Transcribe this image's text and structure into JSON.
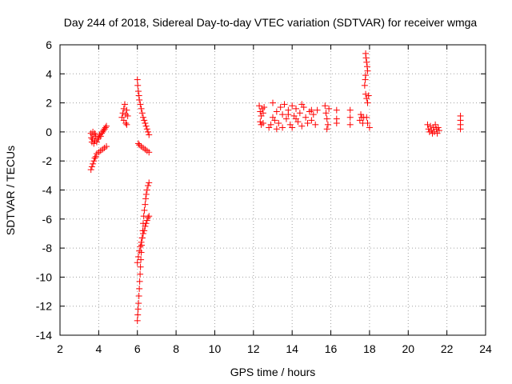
{
  "chart_data": {
    "type": "scatter",
    "title": "Day 244 of 2018, Sidereal Day-to-day VTEC variation (SDTVAR) for receiver wmga",
    "xlabel": "GPS time / hours",
    "ylabel": "SDTVAR / TECUs",
    "xlim": [
      2,
      24
    ],
    "ylim": [
      -14,
      6
    ],
    "xticks": [
      2,
      4,
      6,
      8,
      10,
      12,
      14,
      16,
      18,
      20,
      22,
      24
    ],
    "yticks": [
      -14,
      -12,
      -10,
      -8,
      -6,
      -4,
      -2,
      0,
      2,
      4,
      6
    ],
    "grid": true,
    "marker": "+",
    "color": "#ff0000",
    "series": [
      {
        "name": "SDTVAR",
        "points": [
          [
            3.6,
            -2.6
          ],
          [
            3.65,
            -2.4
          ],
          [
            3.7,
            -2.2
          ],
          [
            3.75,
            -2.0
          ],
          [
            3.8,
            -1.8
          ],
          [
            3.85,
            -1.7
          ],
          [
            3.9,
            -1.5
          ],
          [
            4.0,
            -1.4
          ],
          [
            4.1,
            -1.3
          ],
          [
            4.2,
            -1.2
          ],
          [
            4.3,
            -1.1
          ],
          [
            4.4,
            -1.0
          ],
          [
            3.6,
            -0.1
          ],
          [
            3.62,
            -0.4
          ],
          [
            3.65,
            -0.7
          ],
          [
            3.68,
            -0.5
          ],
          [
            3.7,
            -0.2
          ],
          [
            3.75,
            -0.8
          ],
          [
            3.8,
            -0.6
          ],
          [
            3.85,
            -0.3
          ],
          [
            3.9,
            -0.7
          ],
          [
            3.95,
            -0.5
          ],
          [
            4.0,
            -0.4
          ],
          [
            4.05,
            -0.2
          ],
          [
            4.1,
            -0.3
          ],
          [
            4.15,
            -0.1
          ],
          [
            4.2,
            0.0
          ],
          [
            4.25,
            0.1
          ],
          [
            4.3,
            0.2
          ],
          [
            4.35,
            0.3
          ],
          [
            4.4,
            0.4
          ],
          [
            3.7,
            0.0
          ],
          [
            3.8,
            -0.1
          ],
          [
            5.2,
            1.0
          ],
          [
            5.25,
            1.3
          ],
          [
            5.3,
            1.6
          ],
          [
            5.3,
            0.8
          ],
          [
            5.35,
            1.9
          ],
          [
            5.4,
            1.2
          ],
          [
            5.4,
            0.6
          ],
          [
            5.45,
            1.5
          ],
          [
            5.45,
            0.5
          ],
          [
            5.5,
            1.1
          ],
          [
            6.0,
            3.6
          ],
          [
            6.02,
            3.2
          ],
          [
            6.05,
            2.8
          ],
          [
            6.08,
            2.5
          ],
          [
            6.1,
            2.2
          ],
          [
            6.15,
            1.9
          ],
          [
            6.2,
            1.6
          ],
          [
            6.25,
            1.3
          ],
          [
            6.3,
            1.0
          ],
          [
            6.35,
            0.8
          ],
          [
            6.4,
            0.6
          ],
          [
            6.45,
            0.4
          ],
          [
            6.5,
            0.2
          ],
          [
            6.55,
            0.0
          ],
          [
            6.6,
            -0.2
          ],
          [
            6.05,
            -0.8
          ],
          [
            6.1,
            -0.9
          ],
          [
            6.2,
            -1.0
          ],
          [
            6.3,
            -1.1
          ],
          [
            6.4,
            -1.2
          ],
          [
            6.5,
            -1.3
          ],
          [
            6.6,
            -1.4
          ],
          [
            6.0,
            -13.0
          ],
          [
            6.02,
            -12.6
          ],
          [
            6.04,
            -12.2
          ],
          [
            6.06,
            -11.8
          ],
          [
            6.08,
            -11.3
          ],
          [
            6.1,
            -10.8
          ],
          [
            6.12,
            -10.3
          ],
          [
            6.14,
            -9.8
          ],
          [
            6.16,
            -9.3
          ],
          [
            6.18,
            -8.8
          ],
          [
            6.2,
            -8.3
          ],
          [
            6.22,
            -7.8
          ],
          [
            6.25,
            -7.3
          ],
          [
            6.28,
            -6.8
          ],
          [
            6.3,
            -6.3
          ],
          [
            6.33,
            -5.8
          ],
          [
            6.36,
            -5.4
          ],
          [
            6.4,
            -5.0
          ],
          [
            6.43,
            -4.6
          ],
          [
            6.46,
            -4.3
          ],
          [
            6.5,
            -4.0
          ],
          [
            6.55,
            -3.7
          ],
          [
            6.6,
            -3.5
          ],
          [
            6.0,
            -9.0
          ],
          [
            6.05,
            -8.6
          ],
          [
            6.1,
            -8.2
          ],
          [
            6.15,
            -7.9
          ],
          [
            6.2,
            -7.6
          ],
          [
            6.25,
            -7.3
          ],
          [
            6.3,
            -7.0
          ],
          [
            6.35,
            -6.8
          ],
          [
            6.4,
            -6.5
          ],
          [
            6.45,
            -6.3
          ],
          [
            6.5,
            -6.1
          ],
          [
            6.55,
            -5.9
          ],
          [
            6.6,
            -5.8
          ],
          [
            12.3,
            1.8
          ],
          [
            12.35,
            1.4
          ],
          [
            12.4,
            1.1
          ],
          [
            12.45,
            1.6
          ],
          [
            12.5,
            1.3
          ],
          [
            12.55,
            1.7
          ],
          [
            12.35,
            0.7
          ],
          [
            12.4,
            0.5
          ],
          [
            12.5,
            0.6
          ],
          [
            12.8,
            0.3
          ],
          [
            12.9,
            0.5
          ],
          [
            13.0,
            1.0
          ],
          [
            13.0,
            2.0
          ],
          [
            13.1,
            0.8
          ],
          [
            13.2,
            1.4
          ],
          [
            13.3,
            0.6
          ],
          [
            13.4,
            1.7
          ],
          [
            13.5,
            1.2
          ],
          [
            13.5,
            0.3
          ],
          [
            13.6,
            1.9
          ],
          [
            13.7,
            0.9
          ],
          [
            13.8,
            1.5
          ],
          [
            13.9,
            0.5
          ],
          [
            14.0,
            1.8
          ],
          [
            14.1,
            1.1
          ],
          [
            14.2,
            1.6
          ],
          [
            14.3,
            0.7
          ],
          [
            14.4,
            1.3
          ],
          [
            14.5,
            0.4
          ],
          [
            14.6,
            1.7
          ],
          [
            14.7,
            1.0
          ],
          [
            14.8,
            0.6
          ],
          [
            14.9,
            1.4
          ],
          [
            15.0,
            0.8
          ],
          [
            15.1,
            1.2
          ],
          [
            15.2,
            0.5
          ],
          [
            15.3,
            1.5
          ],
          [
            13.2,
            0.2
          ],
          [
            14.0,
            0.3
          ],
          [
            14.5,
            1.9
          ],
          [
            14.2,
            0.9
          ],
          [
            13.8,
            1.2
          ],
          [
            15.0,
            1.5
          ],
          [
            15.7,
            1.8
          ],
          [
            15.75,
            1.3
          ],
          [
            15.8,
            0.9
          ],
          [
            15.85,
            0.5
          ],
          [
            15.9,
            1.6
          ],
          [
            15.8,
            0.2
          ],
          [
            16.3,
            1.5
          ],
          [
            16.3,
            0.9
          ],
          [
            16.3,
            0.6
          ],
          [
            17.0,
            1.5
          ],
          [
            17.0,
            1.0
          ],
          [
            17.0,
            0.5
          ],
          [
            17.5,
            0.8
          ],
          [
            17.55,
            1.2
          ],
          [
            17.6,
            1.0
          ],
          [
            17.65,
            0.6
          ],
          [
            17.7,
            1.0
          ],
          [
            17.8,
            5.4
          ],
          [
            17.82,
            5.1
          ],
          [
            17.85,
            4.8
          ],
          [
            17.88,
            4.5
          ],
          [
            17.9,
            4.2
          ],
          [
            17.8,
            3.9
          ],
          [
            17.78,
            3.6
          ],
          [
            17.75,
            3.2
          ],
          [
            17.8,
            2.6
          ],
          [
            17.85,
            2.3
          ],
          [
            17.9,
            2.0
          ],
          [
            17.95,
            2.5
          ],
          [
            17.85,
            1.0
          ],
          [
            17.9,
            0.6
          ],
          [
            18.0,
            0.3
          ],
          [
            21.0,
            0.5
          ],
          [
            21.05,
            0.2
          ],
          [
            21.1,
            0.0
          ],
          [
            21.15,
            0.4
          ],
          [
            21.2,
            0.1
          ],
          [
            21.25,
            -0.1
          ],
          [
            21.3,
            0.3
          ],
          [
            21.35,
            0.0
          ],
          [
            21.4,
            0.5
          ],
          [
            21.45,
            0.2
          ],
          [
            21.5,
            -0.1
          ],
          [
            21.55,
            0.3
          ],
          [
            21.6,
            0.1
          ],
          [
            22.7,
            1.1
          ],
          [
            22.7,
            0.8
          ],
          [
            22.7,
            0.5
          ],
          [
            22.7,
            0.2
          ]
        ]
      }
    ]
  }
}
